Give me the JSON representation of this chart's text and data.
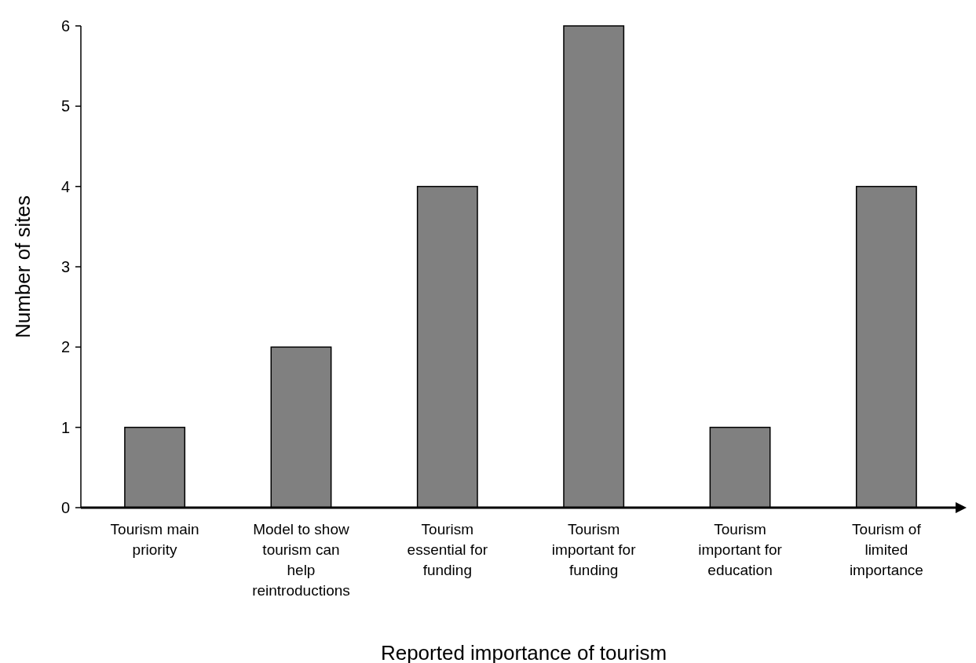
{
  "chart_data": {
    "type": "bar",
    "xlabel": "Reported importance of tourism",
    "ylabel": "Number of sites",
    "categories": [
      "Tourism main priority",
      "Model to show tourism can help reintroductions",
      "Tourism essential for funding",
      "Tourism important for funding",
      "Tourism important for education",
      "Tourism of limited importance"
    ],
    "values": [
      1,
      2,
      4,
      6,
      1,
      4
    ],
    "color": "#808080",
    "ylim": [
      0,
      6
    ],
    "yticks": [
      0,
      1,
      2,
      3,
      4,
      5,
      6
    ],
    "grid": false
  }
}
